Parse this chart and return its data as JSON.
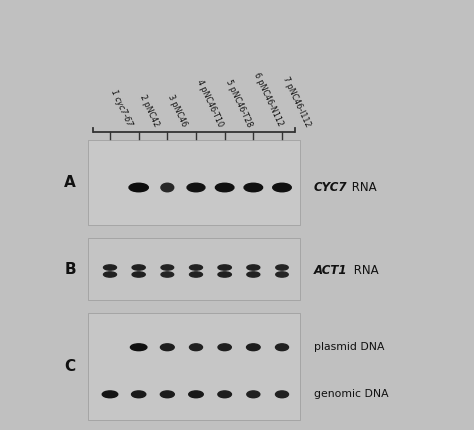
{
  "bg_color": "#c0c0c0",
  "panel_A_bg": "#c8c8c8",
  "panel_B_bg": "#c4c4c4",
  "panel_C_bg": "#c6c6c6",
  "lane_labels": [
    "1",
    "2",
    "3",
    "4",
    "5",
    "6",
    "7"
  ],
  "sample_labels": [
    "cyc7-67",
    "pNC42",
    "pNC46",
    "pNC46-T10",
    "pNC46-T28",
    "pNC46-N112",
    "pNC46-I112"
  ],
  "sample_italic": [
    true,
    false,
    false,
    false,
    false,
    false,
    false
  ],
  "band_A": [
    0.0,
    0.95,
    0.35,
    0.82,
    0.88,
    0.88,
    0.88
  ],
  "band_B_upper": [
    0.72,
    0.75,
    0.68,
    0.72,
    0.78,
    0.72,
    0.65
  ],
  "band_B_lower": [
    0.6,
    0.62,
    0.56,
    0.6,
    0.65,
    0.6,
    0.55
  ],
  "band_C_plasmid": [
    0.0,
    0.88,
    0.6,
    0.52,
    0.55,
    0.58,
    0.52
  ],
  "band_C_genomic": [
    0.78,
    0.65,
    0.62,
    0.68,
    0.58,
    0.52,
    0.52
  ],
  "label_color": "#111111",
  "dark_band_color": "#1a1a1a",
  "medium_band_color": "#3a3a3a"
}
